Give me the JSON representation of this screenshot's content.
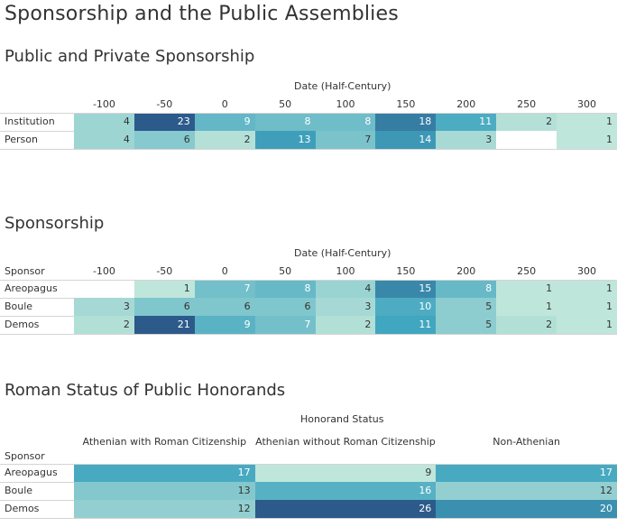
{
  "page_title": "Sponsorship and the Public Assemblies",
  "chart_data": [
    {
      "type": "heatmap",
      "title": "Public and Private Sponsorship",
      "column_dimension": "Date (Half-Century)",
      "row_dimension": "",
      "columns": [
        "-100",
        "-50",
        "0",
        "50",
        "100",
        "150",
        "200",
        "250",
        "300"
      ],
      "rows": [
        {
          "name": "Institution",
          "values": [
            4,
            23,
            9,
            8,
            8,
            18,
            11,
            2,
            1
          ]
        },
        {
          "name": "Person",
          "values": [
            4,
            6,
            2,
            13,
            7,
            14,
            3,
            null,
            1
          ]
        }
      ]
    },
    {
      "type": "heatmap",
      "title": "Sponsorship",
      "column_dimension": "Date (Half-Century)",
      "row_dimension": "Sponsor",
      "columns": [
        "-100",
        "-50",
        "0",
        "50",
        "100",
        "150",
        "200",
        "250",
        "300"
      ],
      "rows": [
        {
          "name": "Areopagus",
          "values": [
            null,
            1,
            7,
            8,
            4,
            15,
            8,
            1,
            1
          ]
        },
        {
          "name": "Boule",
          "values": [
            3,
            6,
            6,
            6,
            3,
            10,
            5,
            1,
            1
          ]
        },
        {
          "name": "Demos",
          "values": [
            2,
            21,
            9,
            7,
            2,
            11,
            5,
            2,
            1
          ]
        }
      ]
    },
    {
      "type": "heatmap",
      "title": "Roman Status of Public Honorands",
      "column_dimension": "Honorand Status",
      "row_dimension": "Sponsor",
      "columns": [
        "Athenian with Roman Citizenship",
        "Athenian without Roman Citizenship",
        "Non-Athenian"
      ],
      "rows": [
        {
          "name": "Areopagus",
          "values": [
            17,
            9,
            17
          ]
        },
        {
          "name": "Boule",
          "values": [
            13,
            16,
            12
          ]
        },
        {
          "name": "Demos",
          "values": [
            12,
            26,
            20
          ]
        }
      ]
    }
  ],
  "colors": {
    "scale_low": "#bfe6da",
    "scale_mid": "#41a6bf",
    "scale_high": "#2c5a8b",
    "dark_text_color": "#333333",
    "light_text_color": "#ffffff"
  }
}
